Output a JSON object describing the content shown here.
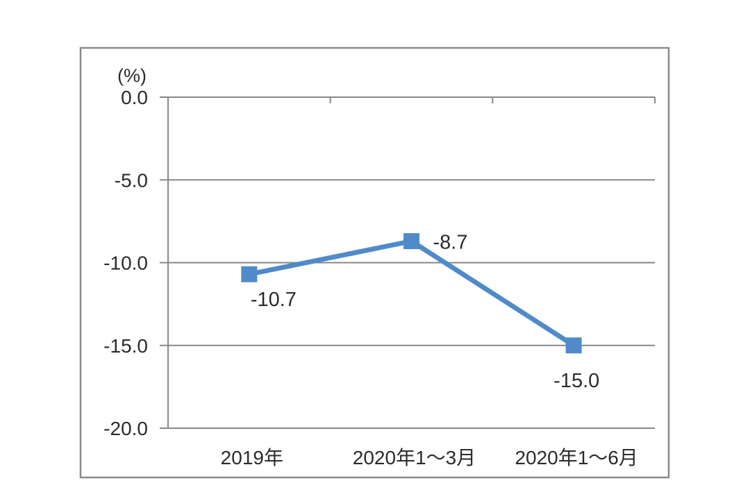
{
  "chart_data": {
    "type": "line",
    "ylabel": "(%)",
    "categories": [
      "2019年",
      "2020年1～3月",
      "2020年1～6月"
    ],
    "values": [
      -10.7,
      -8.7,
      -15.0
    ],
    "data_labels": [
      "-10.7",
      "-8.7",
      "-15.0"
    ],
    "yticks": [
      0,
      -5,
      -10,
      -15,
      -20
    ],
    "ytick_labels": [
      "0.0",
      "-5.0",
      "-10.0",
      "-15.0",
      "-20.0"
    ],
    "ylim": [
      -20,
      0
    ],
    "grid": true,
    "legend": false,
    "marker": "square"
  },
  "style": {
    "series_color": "#4f8bc9",
    "grid_color": "#878787",
    "axis_color": "#878787",
    "border_color": "#8a8a8a",
    "text_color": "#2b2b2b",
    "background": "#ffffff"
  }
}
